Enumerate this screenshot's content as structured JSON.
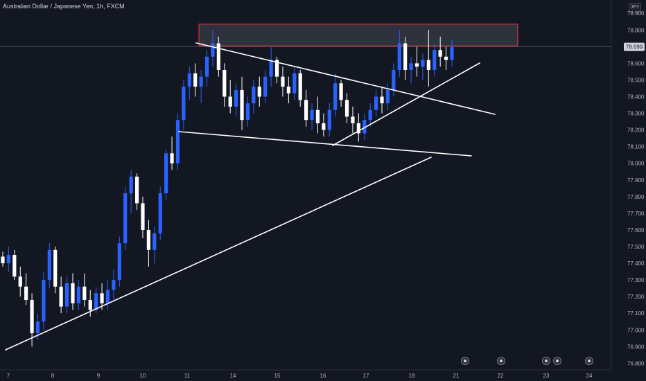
{
  "header": {
    "title": "Australian Dollar / Japanese Yen, 1h, FXCM",
    "currency": "JPY"
  },
  "chart_data": {
    "type": "candlestick",
    "x_ticks": [
      "7",
      "8",
      "9",
      "10",
      "11",
      "14",
      "15",
      "16",
      "17",
      "18",
      "21",
      "22",
      "23",
      "24"
    ],
    "y_ticks": [
      "78.900",
      "78.800",
      "78.700",
      "78.600",
      "78.500",
      "78.400",
      "78.300",
      "78.200",
      "78.100",
      "78.000",
      "77.900",
      "77.800",
      "77.700",
      "77.600",
      "77.500",
      "77.400",
      "77.300",
      "77.200",
      "77.100",
      "77.000",
      "76.900",
      "76.800"
    ],
    "ylim": [
      76.76,
      78.98
    ],
    "current_price_label": "78.699",
    "current_price": 78.699,
    "resistance_zone": {
      "top": 78.835,
      "bottom": 78.705,
      "from": "11",
      "to": "24"
    },
    "trendlines": [
      {
        "name": "long-term-support",
        "from": [
          "7",
          76.91
        ],
        "to": [
          "21",
          78.07
        ]
      },
      {
        "name": "upper-descending",
        "from": [
          "11",
          78.79
        ],
        "to": [
          "21",
          78.34
        ]
      },
      {
        "name": "lower-flat",
        "from": [
          "10",
          78.22
        ],
        "to": [
          "21",
          78.07
        ]
      },
      {
        "name": "rising-support",
        "from": [
          "16",
          78.13
        ],
        "to": [
          "21",
          78.64
        ]
      }
    ],
    "candles": [
      [
        77.44,
        77.47,
        77.38,
        77.4
      ],
      [
        77.4,
        77.5,
        77.35,
        77.45
      ],
      [
        77.45,
        77.48,
        77.3,
        77.32
      ],
      [
        77.32,
        77.38,
        77.2,
        77.26
      ],
      [
        77.26,
        77.34,
        77.15,
        77.18
      ],
      [
        77.18,
        77.22,
        76.9,
        76.98
      ],
      [
        76.98,
        77.1,
        76.94,
        77.05
      ],
      [
        77.05,
        77.35,
        77.0,
        77.3
      ],
      [
        77.3,
        77.52,
        77.25,
        77.48
      ],
      [
        77.48,
        77.5,
        77.22,
        77.26
      ],
      [
        77.26,
        77.32,
        77.1,
        77.14
      ],
      [
        77.14,
        77.32,
        77.1,
        77.28
      ],
      [
        77.28,
        77.34,
        77.12,
        77.16
      ],
      [
        77.16,
        77.3,
        77.12,
        77.26
      ],
      [
        77.26,
        77.34,
        77.14,
        77.18
      ],
      [
        77.18,
        77.24,
        77.08,
        77.12
      ],
      [
        77.12,
        77.26,
        77.1,
        77.22
      ],
      [
        77.22,
        77.28,
        77.12,
        77.16
      ],
      [
        77.16,
        77.3,
        77.12,
        77.24
      ],
      [
        77.24,
        77.36,
        77.18,
        77.3
      ],
      [
        77.3,
        77.56,
        77.26,
        77.52
      ],
      [
        77.52,
        77.86,
        77.48,
        77.82
      ],
      [
        77.82,
        77.96,
        77.7,
        77.92
      ],
      [
        77.92,
        77.94,
        77.72,
        77.76
      ],
      [
        77.76,
        77.8,
        77.55,
        77.6
      ],
      [
        77.6,
        77.66,
        77.38,
        77.48
      ],
      [
        77.48,
        77.62,
        77.4,
        77.58
      ],
      [
        77.58,
        77.86,
        77.54,
        77.82
      ],
      [
        77.82,
        78.08,
        77.78,
        78.06
      ],
      [
        78.06,
        78.16,
        77.96,
        78.0
      ],
      [
        78.0,
        78.3,
        77.96,
        78.26
      ],
      [
        78.26,
        78.5,
        78.2,
        78.46
      ],
      [
        78.46,
        78.58,
        78.38,
        78.54
      ],
      [
        78.54,
        78.6,
        78.4,
        78.46
      ],
      [
        78.46,
        78.56,
        78.36,
        78.52
      ],
      [
        78.52,
        78.68,
        78.46,
        78.64
      ],
      [
        78.64,
        78.8,
        78.58,
        78.72
      ],
      [
        78.72,
        78.76,
        78.52,
        78.56
      ],
      [
        78.56,
        78.6,
        78.34,
        78.4
      ],
      [
        78.4,
        78.5,
        78.3,
        78.34
      ],
      [
        78.34,
        78.48,
        78.28,
        78.44
      ],
      [
        78.44,
        78.52,
        78.2,
        78.26
      ],
      [
        78.26,
        78.4,
        78.22,
        78.36
      ],
      [
        78.36,
        78.5,
        78.3,
        78.46
      ],
      [
        78.46,
        78.52,
        78.34,
        78.4
      ],
      [
        78.4,
        78.56,
        78.36,
        78.52
      ],
      [
        78.52,
        78.7,
        78.46,
        78.62
      ],
      [
        78.62,
        78.64,
        78.48,
        78.52
      ],
      [
        78.52,
        78.58,
        78.4,
        78.46
      ],
      [
        78.46,
        78.52,
        78.36,
        78.42
      ],
      [
        78.42,
        78.58,
        78.38,
        78.54
      ],
      [
        78.54,
        78.56,
        78.34,
        78.38
      ],
      [
        78.38,
        78.44,
        78.22,
        78.26
      ],
      [
        78.26,
        78.36,
        78.2,
        78.32
      ],
      [
        78.32,
        78.4,
        78.18,
        78.24
      ],
      [
        78.24,
        78.3,
        78.16,
        78.2
      ],
      [
        78.2,
        78.36,
        78.16,
        78.32
      ],
      [
        78.32,
        78.54,
        78.28,
        78.48
      ],
      [
        78.48,
        78.5,
        78.34,
        78.38
      ],
      [
        78.38,
        78.42,
        78.24,
        78.28
      ],
      [
        78.28,
        78.34,
        78.18,
        78.24
      ],
      [
        78.24,
        78.3,
        78.13,
        78.18
      ],
      [
        78.18,
        78.3,
        78.14,
        78.26
      ],
      [
        78.26,
        78.36,
        78.22,
        78.32
      ],
      [
        78.32,
        78.44,
        78.28,
        78.4
      ],
      [
        78.4,
        78.46,
        78.3,
        78.36
      ],
      [
        78.36,
        78.48,
        78.32,
        78.44
      ],
      [
        78.44,
        78.6,
        78.4,
        78.56
      ],
      [
        78.56,
        78.8,
        78.52,
        78.72
      ],
      [
        78.72,
        78.76,
        78.5,
        78.56
      ],
      [
        78.56,
        78.64,
        78.48,
        78.6
      ],
      [
        78.6,
        78.7,
        78.52,
        78.58
      ],
      [
        78.58,
        78.66,
        78.5,
        78.62
      ],
      [
        78.62,
        78.8,
        78.46,
        78.56
      ],
      [
        78.56,
        78.72,
        78.52,
        78.68
      ],
      [
        78.68,
        78.76,
        78.58,
        78.64
      ],
      [
        78.64,
        78.7,
        78.56,
        78.62
      ],
      [
        78.62,
        78.74,
        78.58,
        78.7
      ]
    ]
  }
}
